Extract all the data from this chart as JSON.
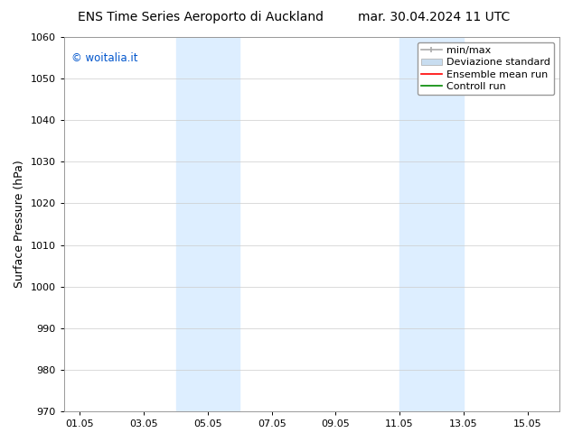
{
  "title_left": "ENS Time Series Aeroporto di Auckland",
  "title_right": "mar. 30.04.2024 11 UTC",
  "ylabel": "Surface Pressure (hPa)",
  "ylim": [
    970,
    1060
  ],
  "yticks": [
    970,
    980,
    990,
    1000,
    1010,
    1020,
    1030,
    1040,
    1050,
    1060
  ],
  "xtick_labels": [
    "01.05",
    "03.05",
    "05.05",
    "07.05",
    "09.05",
    "11.05",
    "13.05",
    "15.05"
  ],
  "xtick_positions": [
    1,
    3,
    5,
    7,
    9,
    11,
    13,
    15
  ],
  "xlim": [
    0.5,
    16.0
  ],
  "shaded_bands": [
    {
      "xstart": 4.0,
      "xend": 6.0
    },
    {
      "xstart": 11.0,
      "xend": 13.0
    }
  ],
  "shaded_color": "#ddeeff",
  "background_color": "#ffffff",
  "watermark_text": "© woitalia.it",
  "watermark_color": "#0055cc",
  "grid_color": "#cccccc",
  "spine_color": "#999999",
  "tick_font_size": 8,
  "label_font_size": 9,
  "title_font_size": 10,
  "legend_font_size": 8,
  "minmax_color": "#aaaaaa",
  "devstd_color": "#c8ddf0",
  "ens_color": "#ff0000",
  "ctrl_color": "#008800"
}
